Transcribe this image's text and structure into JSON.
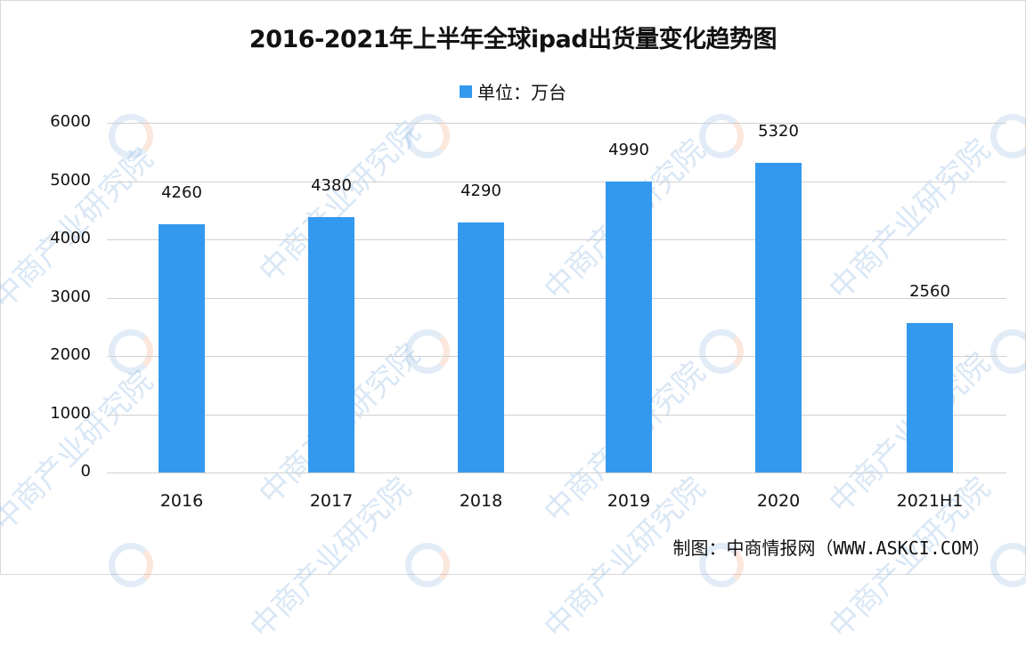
{
  "chart_data": {
    "type": "bar",
    "title": "2016-2021年上半年全球ipad出货量变化趋势图",
    "legend": [
      "单位：万台"
    ],
    "legend_position": "top",
    "categories": [
      "2016",
      "2017",
      "2018",
      "2019",
      "2020",
      "2021H1"
    ],
    "series": [
      {
        "name": "单位：万台",
        "values": [
          4260,
          4380,
          4290,
          4990,
          5320,
          2560
        ]
      }
    ],
    "xlabel": "",
    "ylabel": "",
    "ylim": [
      0,
      6000
    ],
    "yticks": [
      0,
      1000,
      2000,
      3000,
      4000,
      5000,
      6000
    ],
    "grid": true,
    "bar_color": "#3399ee"
  },
  "title": "2016-2021年上半年全球ipad出货量变化趋势图",
  "legend_label": "单位：万台",
  "yticks": [
    "0",
    "1000",
    "2000",
    "3000",
    "4000",
    "5000",
    "6000"
  ],
  "bars": [
    {
      "category": "2016",
      "value": "4260"
    },
    {
      "category": "2017",
      "value": "4380"
    },
    {
      "category": "2018",
      "value": "4290"
    },
    {
      "category": "2019",
      "value": "4990"
    },
    {
      "category": "2020",
      "value": "5320"
    },
    {
      "category": "2021H1",
      "value": "2560"
    }
  ],
  "source": "制图：中商情报网（WWW.ASKCI.COM）",
  "watermark": "中商产业研究院",
  "colors": {
    "bar": "#3399ee",
    "grid": "#d0d0d0",
    "text": "#111111"
  }
}
